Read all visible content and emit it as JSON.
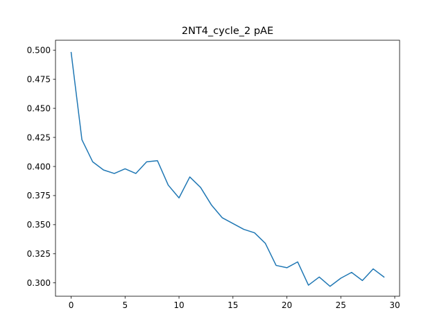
{
  "chart_data": {
    "type": "line",
    "title": "2NT4_cycle_2 pAE",
    "xlabel": "",
    "ylabel": "",
    "xlim": [
      -1.45,
      30.45
    ],
    "ylim": [
      0.2885,
      0.5085
    ],
    "grid": false,
    "x_ticks": [
      0,
      5,
      10,
      15,
      20,
      25,
      30
    ],
    "x_tick_labels": [
      "0",
      "5",
      "10",
      "15",
      "20",
      "25",
      "30"
    ],
    "y_ticks": [
      0.3,
      0.325,
      0.35,
      0.375,
      0.4,
      0.425,
      0.45,
      0.475,
      0.5
    ],
    "y_tick_labels": [
      "0.300",
      "0.325",
      "0.350",
      "0.375",
      "0.400",
      "0.425",
      "0.450",
      "0.475",
      "0.500"
    ],
    "series": [
      {
        "color": "#1f77b4",
        "x": [
          0,
          1,
          2,
          3,
          4,
          5,
          6,
          7,
          8,
          9,
          10,
          11,
          12,
          13,
          14,
          15,
          16,
          17,
          18,
          19,
          20,
          21,
          22,
          23,
          24,
          25,
          26,
          27,
          28,
          29
        ],
        "y": [
          0.498,
          0.423,
          0.404,
          0.397,
          0.394,
          0.398,
          0.394,
          0.404,
          0.405,
          0.384,
          0.373,
          0.391,
          0.382,
          0.367,
          0.356,
          0.351,
          0.346,
          0.343,
          0.334,
          0.315,
          0.313,
          0.318,
          0.298,
          0.305,
          0.297,
          0.304,
          0.309,
          0.302,
          0.312,
          0.305
        ]
      }
    ]
  }
}
